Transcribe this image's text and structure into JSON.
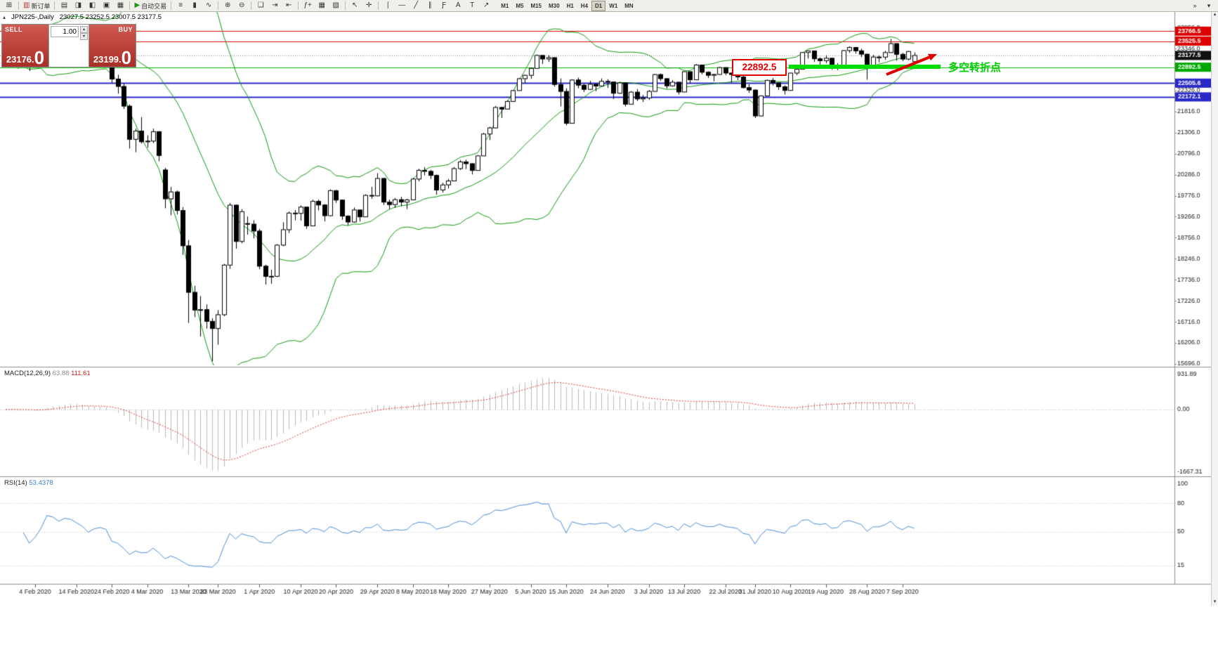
{
  "toolbar": {
    "left_groups": [
      {
        "items": [
          {
            "name": "new-chart",
            "glyph": "⊞"
          }
        ]
      },
      {
        "items": [
          {
            "name": "new-order",
            "glyph": "▥",
            "glyph_color": "#b03030",
            "label": "新订单"
          }
        ]
      },
      {
        "items": [
          {
            "name": "market-watch",
            "glyph": "▤"
          },
          {
            "name": "data-window",
            "glyph": "◨"
          },
          {
            "name": "navigator",
            "glyph": "◧"
          },
          {
            "name": "terminal",
            "glyph": "▣"
          },
          {
            "name": "strategy-tester",
            "glyph": "▦"
          }
        ]
      },
      {
        "items": [
          {
            "name": "autotrading",
            "glyph": "▶",
            "glyph_color": "#1c9a1c",
            "label": "自动交易"
          }
        ]
      },
      {
        "items": [
          {
            "name": "bar-chart",
            "glyph": "≡"
          },
          {
            "name": "candlestick-chart",
            "glyph": "▮"
          },
          {
            "name": "line-chart",
            "glyph": "∿"
          }
        ]
      },
      {
        "items": [
          {
            "name": "zoom-in",
            "glyph": "⊕"
          },
          {
            "name": "zoom-out",
            "glyph": "⊖"
          }
        ]
      },
      {
        "items": [
          {
            "name": "tile-windows",
            "glyph": "❏"
          },
          {
            "name": "auto-scroll",
            "glyph": "⇥"
          },
          {
            "name": "chart-shift",
            "glyph": "⇤"
          }
        ]
      },
      {
        "items": [
          {
            "name": "indicators-list",
            "glyph": "ƒ+"
          },
          {
            "name": "periods",
            "glyph": "▦"
          },
          {
            "name": "templates",
            "glyph": "▧"
          }
        ]
      },
      {
        "items": [
          {
            "name": "cursor",
            "glyph": "↖"
          },
          {
            "name": "crosshair",
            "glyph": "✛"
          }
        ]
      },
      {
        "items": [
          {
            "name": "vertical-line",
            "glyph": "∣"
          },
          {
            "name": "horizontal-line",
            "glyph": "―"
          },
          {
            "name": "trendline",
            "glyph": "╱"
          },
          {
            "name": "equidistant-channel",
            "glyph": "∥"
          },
          {
            "name": "fibonacci",
            "glyph": "Ƒ"
          },
          {
            "name": "text",
            "glyph": "A"
          },
          {
            "name": "text-label",
            "glyph": "T"
          },
          {
            "name": "arrows",
            "glyph": "↗"
          }
        ]
      }
    ],
    "timeframes": [
      "M1",
      "M5",
      "M15",
      "M30",
      "H1",
      "H4",
      "D1",
      "W1",
      "MN"
    ],
    "active_timeframe": "D1",
    "right_icons": [
      {
        "name": "toolbar-overflow",
        "glyph": "»"
      },
      {
        "name": "customize-toolbar",
        "glyph": "▾"
      }
    ]
  },
  "chart": {
    "symbol_period": "JPN225-,Daily",
    "ohlc": "23027.5 23252.5 23007.5 23177.5",
    "collapse_glyph": "▴"
  },
  "one_click": {
    "sell_label": "SELL",
    "buy_label": "BUY",
    "volume": "1.00",
    "spin_up_glyph": "▴",
    "spin_down_glyph": "▾",
    "sell_price_main": "23176.",
    "sell_price_big": "0",
    "buy_price_main": "23199.",
    "buy_price_big": "0"
  },
  "indicators": {
    "macd_name": "MACD(12,26,9)",
    "macd_value": "63.88",
    "macd_signal": "111.61",
    "rsi_name": "RSI(14)",
    "rsi_value": "53.4378"
  },
  "annotations": {
    "price_tag": "22892.5",
    "turning_point_text": "多空转折点"
  },
  "scrollbar": {
    "up_glyph": "▴",
    "down_glyph": "▾"
  },
  "chart_data": {
    "type": "candlestick",
    "symbol": "JPN225-",
    "period": "Daily",
    "price_axis": {
      "grid_min": 15696,
      "grid_step": 510,
      "grid_max": 23856,
      "view_min": 15660,
      "view_max": 24250
    },
    "hlines": [
      {
        "price": 23766.5,
        "color": "#dd0000",
        "width": 1,
        "dash": null,
        "label": "23766.5",
        "box": "#dd0000"
      },
      {
        "price": 23525.5,
        "color": "#dd0000",
        "width": 1,
        "dash": null,
        "label": "23525.5",
        "box": "#dd0000"
      },
      {
        "price": 23177.5,
        "color": "#888888",
        "width": 1,
        "dash": [
          1,
          2
        ],
        "label": "23177.5",
        "box": "#111111"
      },
      {
        "price": 22892.5,
        "color": "#00bb00",
        "width": 1,
        "dash": null,
        "label": "22892.5",
        "box": "#00a800"
      },
      {
        "price": 22505.6,
        "color": "#2929c8",
        "width": 2,
        "dash": null,
        "label": "22505.6",
        "box": "#2929c8"
      },
      {
        "price": 22172.1,
        "color": "#2929c8",
        "width": 2,
        "dash": null,
        "label": "22172.1",
        "box": "#2929c8"
      }
    ],
    "bollinger": {
      "period": 20,
      "deviation": 2,
      "color": "#0f9b0f"
    },
    "macd": {
      "params": "12,26,9",
      "axis_max": 1100,
      "axis_min": -1742,
      "hist_color": "#b9b9b9",
      "signal_color": "#e23a3a",
      "axis_labels": [
        {
          "v": 931.89,
          "t": "931.89"
        },
        {
          "v": 0,
          "t": "0.00"
        },
        {
          "v": -1667.31,
          "t": "-1667.31"
        }
      ]
    },
    "rsi": {
      "period": 14,
      "color": "#4a90d9",
      "view_max": 106.6,
      "view_min": -3.7,
      "levels": [
        80,
        50,
        15
      ],
      "axis_labels": [
        {
          "v": 100,
          "t": "100"
        },
        {
          "v": 80,
          "t": "80"
        },
        {
          "v": 50,
          "t": "50"
        },
        {
          "v": 15,
          "t": "15"
        }
      ]
    },
    "date_ticks": [
      {
        "i": 5,
        "label": "4 Feb 2020"
      },
      {
        "i": 12,
        "label": "14 Feb 2020"
      },
      {
        "i": 18,
        "label": "24 Feb 2020"
      },
      {
        "i": 24,
        "label": "4 Mar 2020"
      },
      {
        "i": 31,
        "label": "13 Mar 2020"
      },
      {
        "i": 36,
        "label": "23 Mar 2020"
      },
      {
        "i": 43,
        "label": "1 Apr 2020"
      },
      {
        "i": 50,
        "label": "10 Apr 2020"
      },
      {
        "i": 56,
        "label": "20 Apr 2020"
      },
      {
        "i": 63,
        "label": "29 Apr 2020"
      },
      {
        "i": 69,
        "label": "8 May 2020"
      },
      {
        "i": 75,
        "label": "18 May 2020"
      },
      {
        "i": 82,
        "label": "27 May 2020"
      },
      {
        "i": 89,
        "label": "5 Jun 2020"
      },
      {
        "i": 95,
        "label": "15 Jun 2020"
      },
      {
        "i": 102,
        "label": "24 Jun 2020"
      },
      {
        "i": 109,
        "label": "3 Jul 2020"
      },
      {
        "i": 115,
        "label": "13 Jul 2020"
      },
      {
        "i": 122,
        "label": "22 Jul 2020"
      },
      {
        "i": 127,
        "label": "31 Jul 2020"
      },
      {
        "i": 133,
        "label": "10 Aug 2020"
      },
      {
        "i": 139,
        "label": "19 Aug 2020"
      },
      {
        "i": 146,
        "label": "28 Aug 2020"
      },
      {
        "i": 152,
        "label": "7 Sep 2020"
      }
    ],
    "candles": [
      [
        23050,
        23290,
        23020,
        23216
      ],
      [
        23216,
        23400,
        23160,
        23379
      ],
      [
        23379,
        23390,
        22890,
        22977
      ],
      [
        22977,
        23260,
        22950,
        23205
      ],
      [
        23205,
        23230,
        22800,
        22972
      ],
      [
        22972,
        23120,
        22950,
        23085
      ],
      [
        23085,
        23360,
        23070,
        23320
      ],
      [
        23320,
        23900,
        23300,
        23874
      ],
      [
        23874,
        23890,
        23740,
        23828
      ],
      [
        23828,
        23850,
        23590,
        23686
      ],
      [
        23686,
        23880,
        23680,
        23861
      ],
      [
        23861,
        23910,
        23760,
        23828
      ],
      [
        23828,
        23860,
        23610,
        23687
      ],
      [
        23687,
        23710,
        23480,
        23523
      ],
      [
        23523,
        23540,
        23130,
        23193
      ],
      [
        23193,
        23430,
        23180,
        23401
      ],
      [
        23401,
        23530,
        23330,
        23479
      ],
      [
        23479,
        23500,
        23290,
        23387
      ],
      [
        23000,
        23030,
        22510,
        22605
      ],
      [
        22605,
        22710,
        22250,
        22426
      ],
      [
        22426,
        22500,
        21880,
        21948
      ],
      [
        21948,
        21990,
        20920,
        21143
      ],
      [
        21143,
        21400,
        20830,
        21344
      ],
      [
        21344,
        21680,
        21040,
        21083
      ],
      [
        21083,
        21240,
        20940,
        21100
      ],
      [
        21100,
        21400,
        21050,
        21329
      ],
      [
        21329,
        21340,
        20610,
        20750
      ],
      [
        20400,
        20450,
        19470,
        19699
      ],
      [
        19699,
        19990,
        19300,
        19867
      ],
      [
        19867,
        19900,
        19320,
        19416
      ],
      [
        19416,
        19500,
        18340,
        18560
      ],
      [
        18560,
        18700,
        16690,
        17431
      ],
      [
        17431,
        17590,
        16830,
        17002
      ],
      [
        17002,
        17340,
        16360,
        17011
      ],
      [
        17011,
        17140,
        16550,
        16727
      ],
      [
        16727,
        16800,
        15760,
        16553
      ],
      [
        16553,
        17000,
        16160,
        16888
      ],
      [
        16888,
        18120,
        16850,
        18092
      ],
      [
        18092,
        19600,
        18000,
        19546
      ],
      [
        19546,
        19560,
        18490,
        18665
      ],
      [
        18665,
        19450,
        18620,
        19389
      ],
      [
        19100,
        19270,
        18830,
        19085
      ],
      [
        19085,
        19180,
        18740,
        18917
      ],
      [
        18917,
        18970,
        17990,
        18065
      ],
      [
        18065,
        18100,
        17620,
        17818
      ],
      [
        17818,
        17980,
        17640,
        17820
      ],
      [
        17820,
        18600,
        17800,
        18576
      ],
      [
        18576,
        19130,
        18550,
        18950
      ],
      [
        18950,
        19390,
        18870,
        19353
      ],
      [
        19353,
        19430,
        19180,
        19346
      ],
      [
        19346,
        19540,
        19170,
        19499
      ],
      [
        19499,
        19510,
        18970,
        19043
      ],
      [
        19043,
        19680,
        19040,
        19638
      ],
      [
        19638,
        19680,
        19420,
        19550
      ],
      [
        19550,
        19570,
        19150,
        19290
      ],
      [
        19290,
        19930,
        19280,
        19897
      ],
      [
        19897,
        19920,
        19600,
        19669
      ],
      [
        19669,
        19680,
        19190,
        19280
      ],
      [
        19280,
        19300,
        19060,
        19137
      ],
      [
        19137,
        19490,
        19120,
        19429
      ],
      [
        19429,
        19440,
        19150,
        19262
      ],
      [
        19262,
        19810,
        19260,
        19783
      ],
      [
        19783,
        19990,
        19700,
        19771
      ],
      [
        19771,
        20320,
        19760,
        20193
      ],
      [
        20193,
        20210,
        19550,
        19619
      ],
      [
        19619,
        19680,
        19450,
        19560
      ],
      [
        19560,
        19720,
        19480,
        19680
      ],
      [
        19680,
        19750,
        19520,
        19620
      ],
      [
        19620,
        19700,
        19450,
        19674
      ],
      [
        19674,
        20210,
        19670,
        20179
      ],
      [
        20179,
        20430,
        20120,
        20390
      ],
      [
        20390,
        20470,
        20270,
        20366
      ],
      [
        20366,
        20400,
        20180,
        20267
      ],
      [
        20267,
        20290,
        19800,
        19914
      ],
      [
        19914,
        20090,
        19850,
        20037
      ],
      [
        20037,
        20180,
        19950,
        20133
      ],
      [
        20133,
        20470,
        20130,
        20433
      ],
      [
        20433,
        20640,
        20400,
        20595
      ],
      [
        20595,
        20650,
        20420,
        20552
      ],
      [
        20552,
        20560,
        20290,
        20388
      ],
      [
        20388,
        20760,
        20380,
        20741
      ],
      [
        20741,
        21300,
        20740,
        21271
      ],
      [
        21271,
        21450,
        21130,
        21419
      ],
      [
        21419,
        21950,
        21410,
        21916
      ],
      [
        21916,
        21930,
        21660,
        21877
      ],
      [
        21877,
        22090,
        21870,
        22062
      ],
      [
        22062,
        22340,
        22050,
        22326
      ],
      [
        22326,
        22630,
        22320,
        22614
      ],
      [
        22614,
        22710,
        22510,
        22696
      ],
      [
        22696,
        22880,
        22610,
        22864
      ],
      [
        22864,
        23200,
        22860,
        23178
      ],
      [
        23178,
        23190,
        22970,
        23091
      ],
      [
        23091,
        23180,
        23020,
        23125
      ],
      [
        23125,
        23130,
        22420,
        22473
      ],
      [
        22473,
        22620,
        21940,
        22305
      ],
      [
        22305,
        22380,
        21480,
        21531
      ],
      [
        21531,
        22600,
        21530,
        22582
      ],
      [
        22582,
        22640,
        22380,
        22456
      ],
      [
        22456,
        22490,
        22290,
        22355
      ],
      [
        22355,
        22560,
        22340,
        22479
      ],
      [
        22479,
        22490,
        22310,
        22437
      ],
      [
        22437,
        22620,
        22430,
        22549
      ],
      [
        22549,
        22600,
        22390,
        22534
      ],
      [
        22534,
        22540,
        22120,
        22260
      ],
      [
        22260,
        22540,
        22250,
        22512
      ],
      [
        22512,
        22520,
        21940,
        21995
      ],
      [
        21995,
        22310,
        21990,
        22288
      ],
      [
        22288,
        22360,
        22070,
        22122
      ],
      [
        22122,
        22220,
        22050,
        22146
      ],
      [
        22146,
        22340,
        22100,
        22306
      ],
      [
        22306,
        22730,
        22300,
        22714
      ],
      [
        22714,
        22740,
        22560,
        22615
      ],
      [
        22615,
        22620,
        22370,
        22439
      ],
      [
        22439,
        22580,
        22420,
        22529
      ],
      [
        22529,
        22530,
        22230,
        22291
      ],
      [
        22291,
        22790,
        22290,
        22784
      ],
      [
        22784,
        22790,
        22500,
        22587
      ],
      [
        22587,
        22970,
        22580,
        22946
      ],
      [
        22946,
        22950,
        22720,
        22770
      ],
      [
        22770,
        22790,
        22630,
        22696
      ],
      [
        22696,
        22730,
        22550,
        22717
      ],
      [
        22717,
        22900,
        22710,
        22884
      ],
      [
        22884,
        22890,
        22700,
        22751
      ],
      [
        22751,
        22760,
        22520,
        22715
      ],
      [
        22715,
        22720,
        22580,
        22657
      ],
      [
        22657,
        22750,
        22380,
        22397
      ],
      [
        22397,
        22480,
        22270,
        22339
      ],
      [
        22339,
        22350,
        21660,
        21710
      ],
      [
        21710,
        22210,
        21700,
        22195
      ],
      [
        22195,
        22590,
        22190,
        22573
      ],
      [
        22573,
        22630,
        22450,
        22514
      ],
      [
        22514,
        22520,
        22340,
        22418
      ],
      [
        22418,
        22450,
        22230,
        22329
      ],
      [
        22329,
        22760,
        22320,
        22750
      ],
      [
        22750,
        22880,
        22700,
        22843
      ],
      [
        22843,
        23260,
        22840,
        23249
      ],
      [
        23249,
        23300,
        23100,
        23289
      ],
      [
        23289,
        23290,
        23020,
        23096
      ],
      [
        23096,
        23130,
        22940,
        23051
      ],
      [
        23051,
        23180,
        22990,
        23110
      ],
      [
        23110,
        23120,
        22830,
        22880
      ],
      [
        22880,
        22990,
        22820,
        22920
      ],
      [
        22920,
        23310,
        22910,
        23296
      ],
      [
        23296,
        23400,
        23240,
        23371
      ],
      [
        23371,
        23380,
        23220,
        23290
      ],
      [
        23290,
        23340,
        23140,
        23208
      ],
      [
        23208,
        23220,
        22590,
        22882
      ],
      [
        22882,
        23190,
        22880,
        23139
      ],
      [
        23139,
        23180,
        23010,
        23138
      ],
      [
        23138,
        23290,
        23070,
        23247
      ],
      [
        23247,
        23580,
        23240,
        23465
      ],
      [
        23465,
        23470,
        23050,
        23205
      ],
      [
        23205,
        23240,
        23040,
        23089
      ],
      [
        23089,
        23290,
        23060,
        23274
      ],
      [
        23027.5,
        23252.5,
        23007.5,
        23177.5
      ]
    ]
  }
}
